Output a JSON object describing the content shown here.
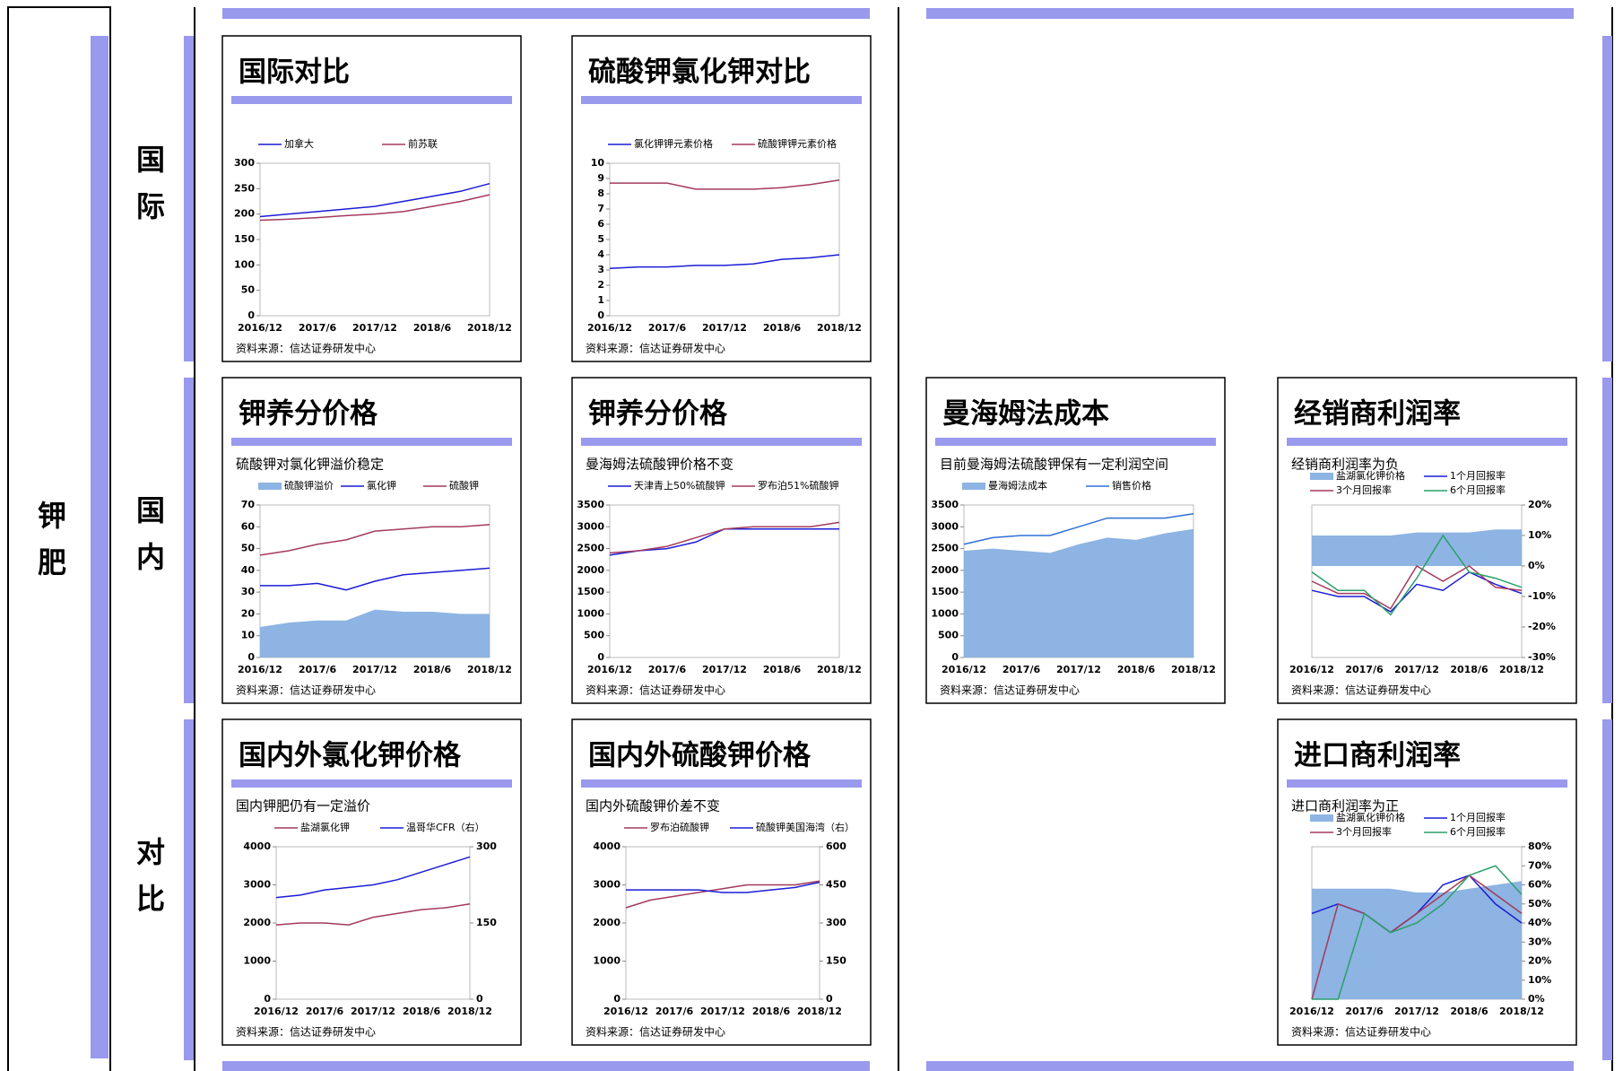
{
  "labels": {
    "main": "钾肥",
    "row1": "国际",
    "row2": "国内",
    "row3": "对比"
  },
  "chart_data": [
    {
      "type": "line",
      "title": "国际对比",
      "source": "资料来源：信达证券研发中心",
      "categories": [
        "2016/12",
        null,
        "2017/6",
        null,
        "2017/12",
        null,
        "2018/6",
        null,
        "2018/12"
      ],
      "series": [
        {
          "name": "加拿大",
          "color": "#1c1cd6",
          "values": [
            195,
            200,
            205,
            210,
            215,
            225,
            235,
            245,
            260
          ]
        },
        {
          "name": "前苏联",
          "color": "#a33a5c",
          "values": [
            188,
            190,
            193,
            197,
            200,
            205,
            215,
            225,
            238
          ]
        }
      ],
      "ylim": [
        0,
        300
      ],
      "yticks": [
        0,
        50,
        100,
        150,
        200,
        250,
        300
      ]
    },
    {
      "type": "line",
      "title": "硫酸钾氯化钾对比",
      "source": "资料来源：信达证券研发中心",
      "categories": [
        "2016/12",
        null,
        "2017/6",
        null,
        "2017/12",
        null,
        "2018/6",
        null,
        "2018/12"
      ],
      "series": [
        {
          "name": "氯化钾钾元素价格",
          "color": "#1c1cd6",
          "values": [
            3.1,
            3.2,
            3.2,
            3.3,
            3.3,
            3.4,
            3.7,
            3.8,
            4.0
          ]
        },
        {
          "name": "硫酸钾钾元素价格",
          "color": "#a33a5c",
          "values": [
            8.7,
            8.7,
            8.7,
            8.3,
            8.3,
            8.3,
            8.4,
            8.6,
            8.9
          ]
        }
      ],
      "ylim": [
        0,
        10
      ],
      "yticks": [
        0,
        1,
        2,
        3,
        4,
        5,
        6,
        7,
        8,
        9,
        10
      ]
    },
    {
      "type": "line",
      "title": "钾养分价格",
      "subtitle": "硫酸钾对氯化钾溢价稳定",
      "source": "资料来源：信达证券研发中心",
      "categories": [
        "2016/12",
        null,
        "2017/6",
        null,
        "2017/12",
        null,
        "2018/6",
        null,
        "2018/12"
      ],
      "series": [
        {
          "name": "硫酸钾溢价",
          "type": "area",
          "color": "#8db4e2",
          "values": [
            14,
            16,
            17,
            17,
            22,
            21,
            21,
            20,
            20
          ]
        },
        {
          "name": "氯化钾",
          "color": "#1c1cd6",
          "values": [
            33,
            33,
            34,
            31,
            35,
            38,
            39,
            40,
            41
          ]
        },
        {
          "name": "硫酸钾",
          "color": "#a33a5c",
          "values": [
            47,
            49,
            52,
            54,
            58,
            59,
            60,
            60,
            61
          ]
        }
      ],
      "ylim": [
        0,
        70
      ],
      "yticks": [
        0,
        10,
        20,
        30,
        40,
        50,
        60,
        70
      ]
    },
    {
      "type": "line",
      "title": "钾养分价格",
      "subtitle": "曼海姆法硫酸钾价格不变",
      "source": "资料来源：信达证券研发中心",
      "categories": [
        "2016/12",
        null,
        "2017/6",
        null,
        "2017/12",
        null,
        "2018/6",
        null,
        "2018/12"
      ],
      "series": [
        {
          "name": "天津青上50%硫酸钾",
          "color": "#1c1cd6",
          "values": [
            2350,
            2450,
            2500,
            2650,
            2950,
            2950,
            2950,
            2950,
            2950
          ]
        },
        {
          "name": "罗布泊51%硫酸钾",
          "color": "#a33a5c",
          "values": [
            2400,
            2450,
            2550,
            2750,
            2950,
            3000,
            3000,
            3000,
            3100
          ]
        }
      ],
      "ylim": [
        0,
        3500
      ],
      "yticks": [
        0,
        500,
        1000,
        1500,
        2000,
        2500,
        3000,
        3500
      ]
    },
    {
      "type": "line",
      "title": "曼海姆法成本",
      "subtitle": "目前曼海姆法硫酸钾保有一定利润空间",
      "source": "资料来源：信达证券研发中心",
      "categories": [
        "2016/12",
        null,
        "2017/6",
        null,
        "2017/12",
        null,
        "2018/6",
        null,
        "2018/12"
      ],
      "series": [
        {
          "name": "曼海姆法成本",
          "type": "area",
          "color": "#8db4e2",
          "values": [
            2450,
            2500,
            2450,
            2400,
            2600,
            2750,
            2700,
            2850,
            2950
          ]
        },
        {
          "name": "销售价格",
          "color": "#2f6fd6",
          "values": [
            2600,
            2750,
            2800,
            2800,
            3000,
            3200,
            3200,
            3200,
            3300
          ]
        }
      ],
      "ylim": [
        0,
        3500
      ],
      "yticks": [
        0,
        500,
        1000,
        1500,
        2000,
        2500,
        3000,
        3500
      ]
    },
    {
      "type": "line",
      "title": "经销商利润率",
      "subtitle": "经销商利润率为负",
      "source": "资料来源：信达证券研发中心",
      "categories": [
        "2016/12",
        null,
        "2017/6",
        null,
        "2017/12",
        null,
        "2018/6",
        null,
        "2018/12"
      ],
      "series": [
        {
          "name": "盐湖氯化钾价格",
          "type": "area",
          "axis": "y2",
          "color": "#8db4e2",
          "values": [
            10,
            10,
            10,
            10,
            11,
            11,
            11,
            12,
            12
          ]
        },
        {
          "name": "1个月回报率",
          "axis": "y2",
          "color": "#1c1cd6",
          "values": [
            -8,
            -10,
            -10,
            -15,
            -6,
            -8,
            -2,
            -6,
            -9
          ]
        },
        {
          "name": "3个月回报率",
          "axis": "y2",
          "color": "#a33a5c",
          "values": [
            -5,
            -9,
            -9,
            -14,
            0,
            -5,
            0,
            -7,
            -8
          ]
        },
        {
          "name": "6个月回报率",
          "axis": "y2",
          "color": "#2aa06a",
          "values": [
            -2,
            -8,
            -8,
            -16,
            -4,
            10,
            -2,
            -4,
            -7
          ]
        }
      ],
      "y2lim": [
        -30,
        20
      ],
      "y2ticks": [
        {
          "value": -30,
          "label": "-30%"
        },
        {
          "value": -20,
          "label": "-20%"
        },
        {
          "value": -10,
          "label": "-10%"
        },
        {
          "value": 0,
          "label": "0%"
        },
        {
          "value": 10,
          "label": "10%"
        },
        {
          "value": 20,
          "label": "20%"
        }
      ]
    },
    {
      "type": "line",
      "title": "国内外氯化钾价格",
      "subtitle": "国内钾肥仍有一定溢价",
      "source": "资料来源：信达证券研发中心",
      "categories": [
        "2016/12",
        null,
        "2017/6",
        null,
        "2017/12",
        null,
        "2018/6",
        null,
        "2018/12"
      ],
      "series": [
        {
          "name": "盐湖氯化钾",
          "color": "#a33a5c",
          "values": [
            1950,
            2000,
            2000,
            1950,
            2150,
            2250,
            2350,
            2400,
            2500
          ]
        },
        {
          "name": "温哥华CFR（右）",
          "axis": "y2",
          "color": "#1c1cd6",
          "values": [
            200,
            205,
            215,
            220,
            225,
            235,
            250,
            265,
            280
          ]
        }
      ],
      "ylim": [
        0,
        4000
      ],
      "yticks": [
        0,
        1000,
        2000,
        3000,
        4000
      ],
      "y2lim": [
        0,
        300
      ],
      "y2ticks": [
        0,
        150,
        300
      ]
    },
    {
      "type": "line",
      "title": "国内外硫酸钾价格",
      "subtitle": "国内外硫酸钾价差不变",
      "source": "资料来源：信达证券研发中心",
      "categories": [
        "2016/12",
        null,
        "2017/6",
        null,
        "2017/12",
        null,
        "2018/6",
        null,
        "2018/12"
      ],
      "series": [
        {
          "name": "罗布泊硫酸钾",
          "color": "#a33a5c",
          "values": [
            2400,
            2600,
            2700,
            2800,
            2900,
            3000,
            3000,
            3000,
            3100
          ]
        },
        {
          "name": "硫酸钾美国海湾（右）",
          "axis": "y2",
          "color": "#1c1cd6",
          "values": [
            430,
            430,
            430,
            430,
            420,
            420,
            430,
            440,
            460
          ]
        }
      ],
      "ylim": [
        0,
        4000
      ],
      "yticks": [
        0,
        1000,
        2000,
        3000,
        4000
      ],
      "y2lim": [
        0,
        600
      ],
      "y2ticks": [
        0,
        150,
        300,
        450,
        600
      ]
    },
    {
      "type": "line",
      "title": "进口商利润率",
      "subtitle": "进口商利润率为正",
      "source": "资料来源：信达证券研发中心",
      "categories": [
        "2016/12",
        null,
        "2017/6",
        null,
        "2017/12",
        null,
        "2018/6",
        null,
        "2018/12"
      ],
      "series": [
        {
          "name": "盐湖氯化钾价格",
          "type": "area",
          "axis": "y2",
          "color": "#8db4e2",
          "values": [
            58,
            58,
            58,
            58,
            56,
            56,
            58,
            60,
            62
          ]
        },
        {
          "name": "1个月回报率",
          "axis": "y2",
          "color": "#1c1cd6",
          "values": [
            45,
            50,
            45,
            35,
            45,
            60,
            65,
            50,
            40
          ]
        },
        {
          "name": "3个月回报率",
          "axis": "y2",
          "color": "#a33a5c",
          "values": [
            0,
            50,
            45,
            35,
            45,
            55,
            65,
            55,
            45
          ]
        },
        {
          "name": "6个月回报率",
          "axis": "y2",
          "color": "#2aa06a",
          "values": [
            0,
            0,
            45,
            35,
            40,
            50,
            65,
            70,
            55
          ]
        }
      ],
      "y2lim": [
        0,
        80
      ],
      "y2ticks": [
        {
          "value": 0,
          "label": "0%"
        },
        {
          "value": 10,
          "label": "10%"
        },
        {
          "value": 20,
          "label": "20%"
        },
        {
          "value": 30,
          "label": "30%"
        },
        {
          "value": 40,
          "label": "40%"
        },
        {
          "value": 50,
          "label": "50%"
        },
        {
          "value": 60,
          "label": "60%"
        },
        {
          "value": 70,
          "label": "70%"
        },
        {
          "value": 80,
          "label": "80%"
        }
      ]
    }
  ]
}
